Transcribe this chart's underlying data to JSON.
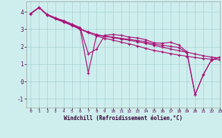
{
  "xlabel": "Windchill (Refroidissement éolien,°C)",
  "background_color": "#ceeeed",
  "grid_color": "#aad4d4",
  "line_color": "#aa1177",
  "xlim": [
    -0.5,
    23
  ],
  "ylim": [
    -1.5,
    4.6
  ],
  "yticks": [
    -1,
    0,
    1,
    2,
    3,
    4
  ],
  "xticks": [
    0,
    1,
    2,
    3,
    4,
    5,
    6,
    7,
    8,
    9,
    10,
    11,
    12,
    13,
    14,
    15,
    16,
    17,
    18,
    19,
    20,
    21,
    22,
    23
  ],
  "series1": {
    "x": [
      0,
      1,
      2,
      3,
      4,
      5,
      6,
      7,
      8,
      9,
      10,
      11,
      12,
      13,
      14,
      15,
      16,
      17,
      18,
      19,
      20,
      21,
      22,
      23
    ],
    "y": [
      3.9,
      4.25,
      3.85,
      3.65,
      3.5,
      3.3,
      3.1,
      1.6,
      1.85,
      2.65,
      2.7,
      2.65,
      2.55,
      2.5,
      2.4,
      2.22,
      2.2,
      2.25,
      2.1,
      1.7,
      -0.75,
      0.4,
      1.25,
      1.4
    ]
  },
  "series2": {
    "x": [
      0,
      1,
      2,
      3,
      4,
      5,
      6,
      7,
      8,
      9,
      10,
      11,
      12,
      13,
      14,
      15,
      16,
      17,
      18,
      19,
      20,
      21,
      22,
      23
    ],
    "y": [
      3.9,
      4.25,
      3.85,
      3.65,
      3.45,
      3.25,
      3.05,
      0.5,
      2.65,
      2.6,
      2.55,
      2.48,
      2.42,
      2.35,
      2.28,
      2.15,
      2.08,
      2.02,
      1.95,
      1.65,
      -0.75,
      0.4,
      1.25,
      1.4
    ]
  },
  "series3": {
    "x": [
      0,
      1,
      2,
      3,
      4,
      5,
      6,
      7,
      8,
      9,
      10,
      11,
      12,
      13,
      14,
      15,
      16,
      17,
      18,
      19,
      20,
      21,
      22,
      23
    ],
    "y": [
      3.9,
      4.25,
      3.82,
      3.6,
      3.42,
      3.22,
      3.02,
      2.85,
      2.7,
      2.6,
      2.52,
      2.44,
      2.37,
      2.28,
      2.2,
      2.08,
      1.97,
      1.87,
      1.77,
      1.68,
      1.58,
      1.48,
      1.4,
      1.35
    ]
  },
  "series4": {
    "x": [
      0,
      1,
      2,
      3,
      4,
      5,
      6,
      7,
      8,
      9,
      10,
      11,
      12,
      13,
      14,
      15,
      16,
      17,
      18,
      19,
      20,
      21,
      22,
      23
    ],
    "y": [
      3.9,
      4.25,
      3.82,
      3.6,
      3.42,
      3.22,
      3.0,
      2.8,
      2.62,
      2.48,
      2.38,
      2.26,
      2.16,
      2.04,
      1.9,
      1.78,
      1.7,
      1.6,
      1.52,
      1.45,
      1.38,
      1.32,
      1.28,
      1.25
    ]
  }
}
